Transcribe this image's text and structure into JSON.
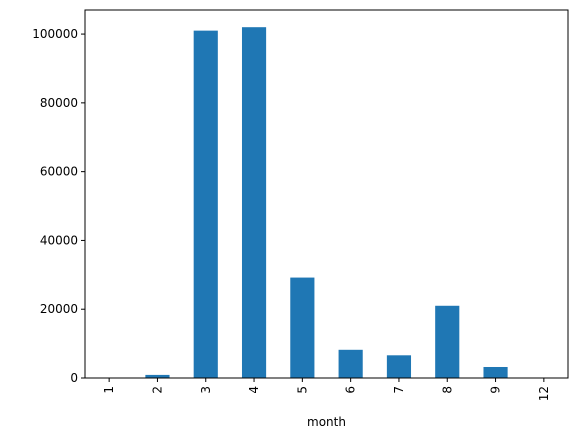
{
  "chart_data": {
    "type": "bar",
    "title": "",
    "xlabel": "month",
    "ylabel": "",
    "categories": [
      "1",
      "2",
      "3",
      "4",
      "5",
      "6",
      "7",
      "8",
      "9",
      "12"
    ],
    "series": [
      {
        "values": [
          120,
          900,
          101000,
          102000,
          29200,
          8200,
          6600,
          21000,
          3200,
          80
        ],
        "color": "#1f77b4"
      }
    ],
    "ylim": [
      0,
      107000
    ],
    "yticks": [
      0,
      20000,
      40000,
      60000,
      80000,
      100000
    ],
    "grid": false,
    "legend": "none",
    "x_tick_rotation": -90
  }
}
